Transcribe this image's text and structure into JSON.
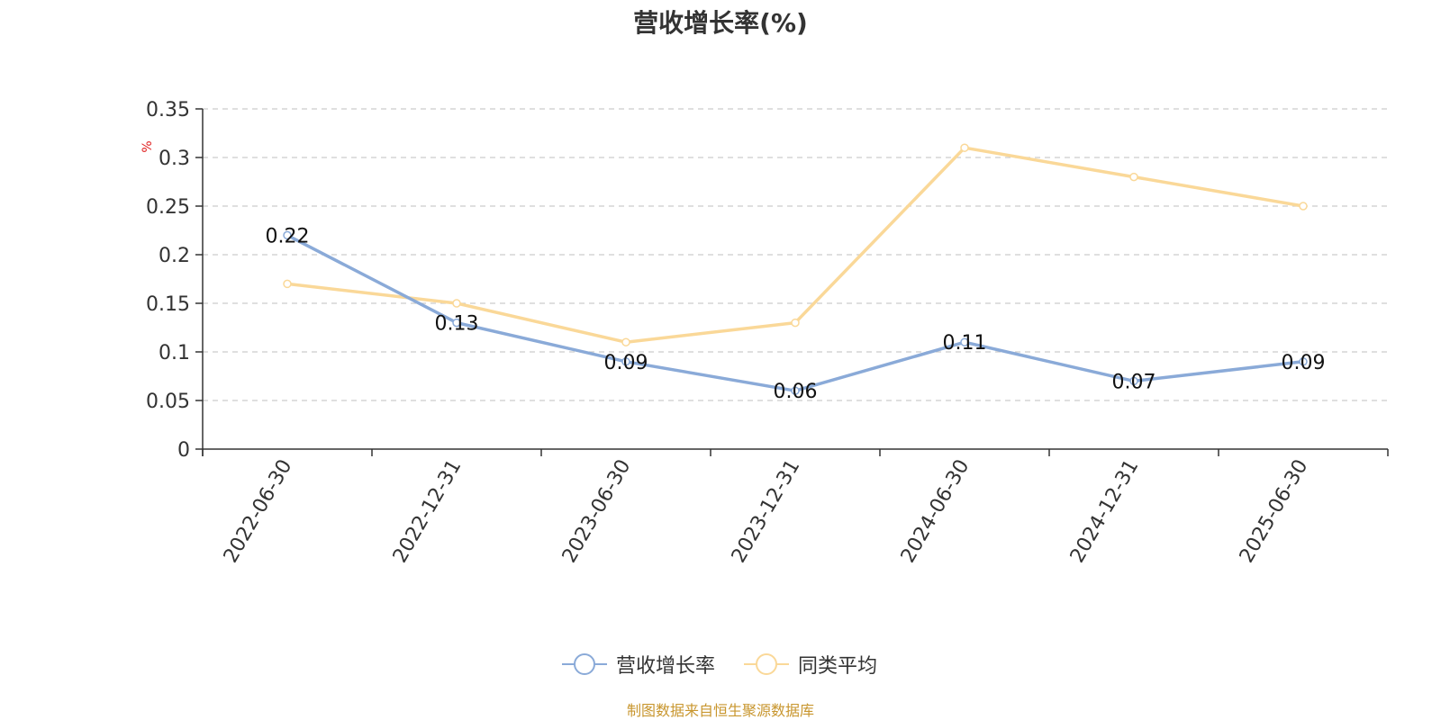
{
  "chart_data": {
    "type": "line",
    "title": "营收增长率(%)",
    "ylabel": "%",
    "xlabel": "",
    "categories": [
      "2022-06-30",
      "2022-12-31",
      "2023-06-30",
      "2023-12-31",
      "2024-06-30",
      "2024-12-31",
      "2025-06-30"
    ],
    "series": [
      {
        "name": "营收增长率",
        "values": [
          0.22,
          0.13,
          0.09,
          0.06,
          0.11,
          0.07,
          0.09
        ],
        "color": "#8aaad8",
        "data_labels": true
      },
      {
        "name": "同类平均",
        "values": [
          0.17,
          0.15,
          0.11,
          0.13,
          0.31,
          0.28,
          0.25
        ],
        "color": "#fad898",
        "data_labels": false
      }
    ],
    "ylim": [
      0,
      0.35
    ],
    "yticks": [
      0,
      0.05,
      0.1,
      0.15,
      0.2,
      0.25,
      0.3,
      0.35
    ],
    "ytick_labels": [
      "0",
      "0.05",
      "0.1",
      "0.15",
      "0.2",
      "0.25",
      "0.3",
      "0.35"
    ],
    "grid": true,
    "legend_position": "bottom-center"
  },
  "source_note": "制图数据来自恒生聚源数据库",
  "colors": {
    "axis": "#333333",
    "grid": "#cccccc",
    "unit_label": "#e02020",
    "source_note": "#c8962e"
  }
}
